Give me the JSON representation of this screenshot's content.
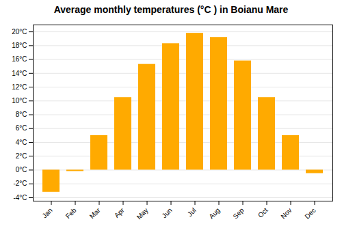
{
  "chart_data": {
    "type": "bar",
    "title": "Average monthly temperatures (°C ) in Boianu Mare",
    "categories": [
      "Jan",
      "Feb",
      "Mar",
      "Apr",
      "May",
      "Jun",
      "Jul",
      "Aug",
      "Sep",
      "Oct",
      "Nov",
      "Dec"
    ],
    "values": [
      -3.2,
      -0.2,
      5.0,
      10.5,
      15.3,
      18.3,
      19.8,
      19.2,
      15.8,
      10.5,
      5.0,
      -0.5
    ],
    "color": "#FFAA00",
    "ylim": [
      -4.5,
      21.0
    ],
    "yticks": [
      {
        "value": -4,
        "label": "-4°C"
      },
      {
        "value": -2,
        "label": "-2°C"
      },
      {
        "value": 0,
        "label": "0°C"
      },
      {
        "value": 2,
        "label": "2°C"
      },
      {
        "value": 4,
        "label": "4°C"
      },
      {
        "value": 6,
        "label": "6°C"
      },
      {
        "value": 8,
        "label": "8°C"
      },
      {
        "value": 10,
        "label": "10°C"
      },
      {
        "value": 12,
        "label": "12°C"
      },
      {
        "value": 14,
        "label": "14°C"
      },
      {
        "value": 16,
        "label": "16°C"
      },
      {
        "value": 18,
        "label": "18°C"
      },
      {
        "value": 20,
        "label": "20°C"
      }
    ],
    "grid": true
  }
}
